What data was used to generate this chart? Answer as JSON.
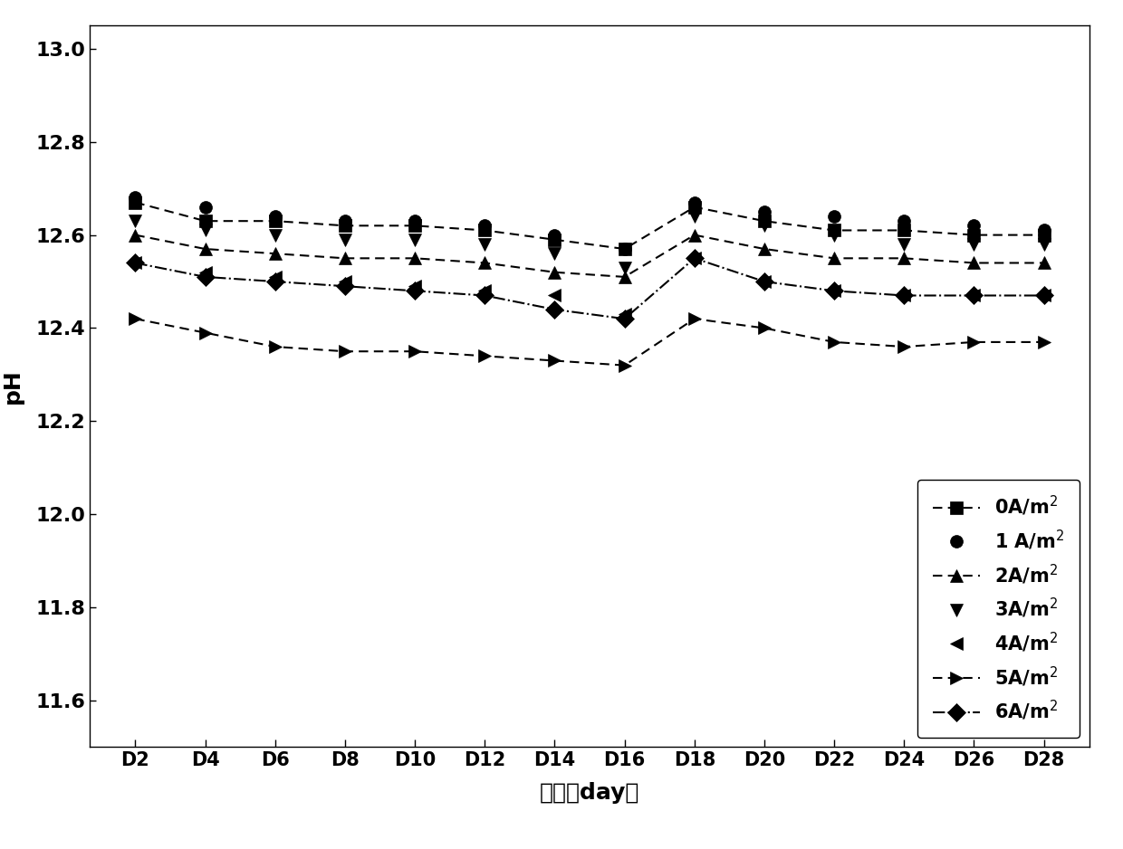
{
  "x": [
    2,
    4,
    6,
    8,
    10,
    12,
    14,
    16,
    18,
    20,
    22,
    24,
    26,
    28
  ],
  "series_order": [
    "0A/m2",
    "1A/m2",
    "2A/m2",
    "3A/m2",
    "4A/m2",
    "5A/m2",
    "6A/m2"
  ],
  "series": {
    "0A/m2": {
      "label": "0A/m$^2$",
      "values": [
        12.67,
        12.63,
        12.63,
        12.62,
        12.62,
        12.61,
        12.59,
        12.57,
        12.66,
        12.63,
        12.61,
        12.61,
        12.6,
        12.6
      ],
      "marker": "s",
      "linestyle": "--",
      "linewidth": 1.5
    },
    "1A/m2": {
      "label": "1 A/m$^2$",
      "values": [
        12.68,
        12.66,
        12.64,
        12.63,
        12.63,
        12.62,
        12.6,
        12.57,
        12.67,
        12.65,
        12.64,
        12.63,
        12.62,
        12.61
      ],
      "marker": "o",
      "linestyle": "none",
      "linewidth": 0
    },
    "2A/m2": {
      "label": "2A/m$^2$",
      "values": [
        12.6,
        12.57,
        12.56,
        12.55,
        12.55,
        12.54,
        12.52,
        12.51,
        12.6,
        12.57,
        12.55,
        12.55,
        12.54,
        12.54
      ],
      "marker": "^",
      "linestyle": "--",
      "linewidth": 1.5
    },
    "3A/m2": {
      "label": "3A/m$^2$",
      "values": [
        12.63,
        12.61,
        12.6,
        12.59,
        12.59,
        12.58,
        12.56,
        12.53,
        12.64,
        12.62,
        12.6,
        12.58,
        12.58,
        12.58
      ],
      "marker": "v",
      "linestyle": "none",
      "linewidth": 0
    },
    "4A/m2": {
      "label": "4A/m$^2$",
      "values": [
        12.54,
        12.52,
        12.51,
        12.5,
        12.49,
        12.48,
        12.47,
        12.43,
        12.55,
        12.5,
        12.48,
        12.47,
        12.47,
        12.47
      ],
      "marker": "<",
      "linestyle": "none",
      "linewidth": 0
    },
    "5A/m2": {
      "label": "5A/m$^2$",
      "values": [
        12.42,
        12.39,
        12.36,
        12.35,
        12.35,
        12.34,
        12.33,
        12.32,
        12.42,
        12.4,
        12.37,
        12.36,
        12.37,
        12.37
      ],
      "marker": ">",
      "linestyle": "--",
      "linewidth": 1.5
    },
    "6A/m2": {
      "label": "6A/m$^2$",
      "values": [
        12.54,
        12.51,
        12.5,
        12.49,
        12.48,
        12.47,
        12.44,
        12.42,
        12.55,
        12.5,
        12.48,
        12.47,
        12.47,
        12.47
      ],
      "marker": "D",
      "linestyle": "-.",
      "linewidth": 1.5
    }
  },
  "xlabel": "天数（day）",
  "ylabel": "pH",
  "ylim": [
    11.5,
    13.05
  ],
  "yticks": [
    11.6,
    11.8,
    12.0,
    12.2,
    12.4,
    12.6,
    12.8,
    13.0
  ],
  "xtick_labels": [
    "D2",
    "D4",
    "D6",
    "D8",
    "D10",
    "D12",
    "D14",
    "D16",
    "D18",
    "D20",
    "D22",
    "D24",
    "D26",
    "D28"
  ],
  "color": "black",
  "markersize": 10,
  "background_color": "#ffffff"
}
